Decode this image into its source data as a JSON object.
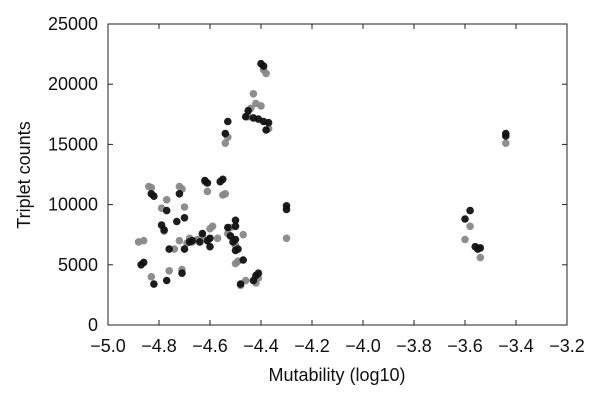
{
  "chart_data": {
    "type": "scatter",
    "title": "",
    "xlabel": "Mutability (log10)",
    "ylabel": "Triplet counts",
    "xlim": [
      -5.0,
      -3.2
    ],
    "ylim": [
      0,
      25000
    ],
    "xticks": [
      -5.0,
      -4.8,
      -4.6,
      -4.4,
      -4.2,
      -4.0,
      -3.8,
      -3.6,
      -3.4,
      -3.2
    ],
    "xtick_labels": [
      "−5.0",
      "−4.8",
      "−4.6",
      "−4.4",
      "−4.2",
      "−4.0",
      "−3.8",
      "−3.6",
      "−3.4",
      "−3.2"
    ],
    "yticks": [
      0,
      5000,
      10000,
      15000,
      20000,
      25000
    ],
    "ytick_labels": [
      "0",
      "5000",
      "10000",
      "15000",
      "20000",
      "25000"
    ],
    "grid": false,
    "legend": "none",
    "series": [
      {
        "color": "#888888",
        "points": [
          [
            -4.88,
            6900
          ],
          [
            -4.86,
            7000
          ],
          [
            -4.84,
            11500
          ],
          [
            -4.83,
            11400
          ],
          [
            -4.83,
            4000
          ],
          [
            -4.79,
            9700
          ],
          [
            -4.78,
            7800
          ],
          [
            -4.77,
            10400
          ],
          [
            -4.76,
            4500
          ],
          [
            -4.74,
            6300
          ],
          [
            -4.72,
            11500
          ],
          [
            -4.71,
            11300
          ],
          [
            -4.72,
            7000
          ],
          [
            -4.71,
            4600
          ],
          [
            -4.7,
            9800
          ],
          [
            -4.69,
            6800
          ],
          [
            -4.68,
            7200
          ],
          [
            -4.67,
            6900
          ],
          [
            -4.65,
            7100
          ],
          [
            -4.63,
            7400
          ],
          [
            -4.62,
            11900
          ],
          [
            -4.61,
            11100
          ],
          [
            -4.6,
            8000
          ],
          [
            -4.59,
            8200
          ],
          [
            -4.57,
            7200
          ],
          [
            -4.55,
            10800
          ],
          [
            -4.54,
            15100
          ],
          [
            -4.53,
            15600
          ],
          [
            -4.54,
            10900
          ],
          [
            -4.53,
            7600
          ],
          [
            -4.52,
            8100
          ],
          [
            -4.5,
            6600
          ],
          [
            -4.5,
            5100
          ],
          [
            -4.49,
            5300
          ],
          [
            -4.48,
            3300
          ],
          [
            -4.47,
            7500
          ],
          [
            -4.46,
            3700
          ],
          [
            -4.45,
            17300
          ],
          [
            -4.44,
            18000
          ],
          [
            -4.43,
            19200
          ],
          [
            -4.42,
            18400
          ],
          [
            -4.42,
            3500
          ],
          [
            -4.41,
            3900
          ],
          [
            -4.4,
            18200
          ],
          [
            -4.39,
            21200
          ],
          [
            -4.38,
            20900
          ],
          [
            -4.37,
            16300
          ],
          [
            -4.3,
            7200
          ],
          [
            -3.6,
            7100
          ],
          [
            -3.58,
            8200
          ],
          [
            -3.55,
            6400
          ],
          [
            -3.54,
            5600
          ],
          [
            -3.44,
            15100
          ]
        ]
      },
      {
        "color": "#111111",
        "points": [
          [
            -4.87,
            5000
          ],
          [
            -4.86,
            5200
          ],
          [
            -4.83,
            10900
          ],
          [
            -4.82,
            3400
          ],
          [
            -4.82,
            10700
          ],
          [
            -4.79,
            8300
          ],
          [
            -4.78,
            7900
          ],
          [
            -4.77,
            3700
          ],
          [
            -4.77,
            9500
          ],
          [
            -4.76,
            6300
          ],
          [
            -4.73,
            8600
          ],
          [
            -4.72,
            10900
          ],
          [
            -4.71,
            4300
          ],
          [
            -4.7,
            8900
          ],
          [
            -4.7,
            6300
          ],
          [
            -4.68,
            6900
          ],
          [
            -4.67,
            7000
          ],
          [
            -4.64,
            6900
          ],
          [
            -4.63,
            7600
          ],
          [
            -4.62,
            12000
          ],
          [
            -4.61,
            11800
          ],
          [
            -4.61,
            7000
          ],
          [
            -4.6,
            7200
          ],
          [
            -4.6,
            6500
          ],
          [
            -4.56,
            11900
          ],
          [
            -4.55,
            12100
          ],
          [
            -4.54,
            15900
          ],
          [
            -4.53,
            16900
          ],
          [
            -4.53,
            8100
          ],
          [
            -4.52,
            7400
          ],
          [
            -4.51,
            6900
          ],
          [
            -4.5,
            8700
          ],
          [
            -4.5,
            8200
          ],
          [
            -4.5,
            7100
          ],
          [
            -4.5,
            6200
          ],
          [
            -4.49,
            6300
          ],
          [
            -4.48,
            3400
          ],
          [
            -4.47,
            5400
          ],
          [
            -4.46,
            17300
          ],
          [
            -4.45,
            17800
          ],
          [
            -4.43,
            17200
          ],
          [
            -4.43,
            3700
          ],
          [
            -4.42,
            4100
          ],
          [
            -4.41,
            4300
          ],
          [
            -4.41,
            17100
          ],
          [
            -4.4,
            21700
          ],
          [
            -4.39,
            21500
          ],
          [
            -4.39,
            16900
          ],
          [
            -4.38,
            16200
          ],
          [
            -4.37,
            16800
          ],
          [
            -4.3,
            9900
          ],
          [
            -4.3,
            9600
          ],
          [
            -3.6,
            8800
          ],
          [
            -3.58,
            9500
          ],
          [
            -3.56,
            6500
          ],
          [
            -3.55,
            6300
          ],
          [
            -3.54,
            6400
          ],
          [
            -3.44,
            15700
          ],
          [
            -3.44,
            15900
          ]
        ]
      }
    ]
  }
}
